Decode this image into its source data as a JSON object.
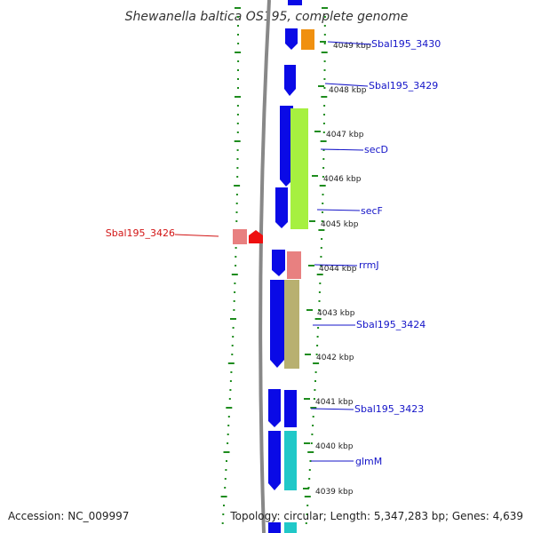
{
  "title": "Shewanella baltica OS195, complete genome",
  "footer": {
    "accession": "Accession: NC_009997",
    "topology": "Topology: circular; Length: 5,347,283 bp; Genes: 4,639"
  },
  "colors": {
    "forward": "#0a0ae6",
    "label_blue": "#1414c8",
    "label_red": "#d21414",
    "backbone": "#888888",
    "tick_green": "#1e8c1e"
  },
  "ticks": [
    "4049 kbp",
    "4048 kbp",
    "4047 kbp",
    "4046 kbp",
    "4045 kbp",
    "4044 kbp",
    "4043 kbp",
    "4042 kbp",
    "4041 kbp",
    "4040 kbp",
    "4039 kbp"
  ],
  "gene_labels": [
    {
      "text": "Sbal195_3430",
      "color": "blue"
    },
    {
      "text": "Sbal195_3429",
      "color": "blue"
    },
    {
      "text": "secD",
      "color": "blue"
    },
    {
      "text": "secF",
      "color": "blue"
    },
    {
      "text": "Sbal195_3426",
      "color": "red"
    },
    {
      "text": "rrmJ",
      "color": "blue"
    },
    {
      "text": "Sbal195_3424",
      "color": "blue"
    },
    {
      "text": "Sbal195_3423",
      "color": "blue"
    },
    {
      "text": "glmM",
      "color": "blue"
    }
  ],
  "feature_colors": {
    "orange": "#f09010",
    "lime": "#a6f040",
    "pink": "#e88080",
    "khaki": "#b8b070",
    "cyan": "#20c8c8",
    "red": "#ee1010"
  }
}
